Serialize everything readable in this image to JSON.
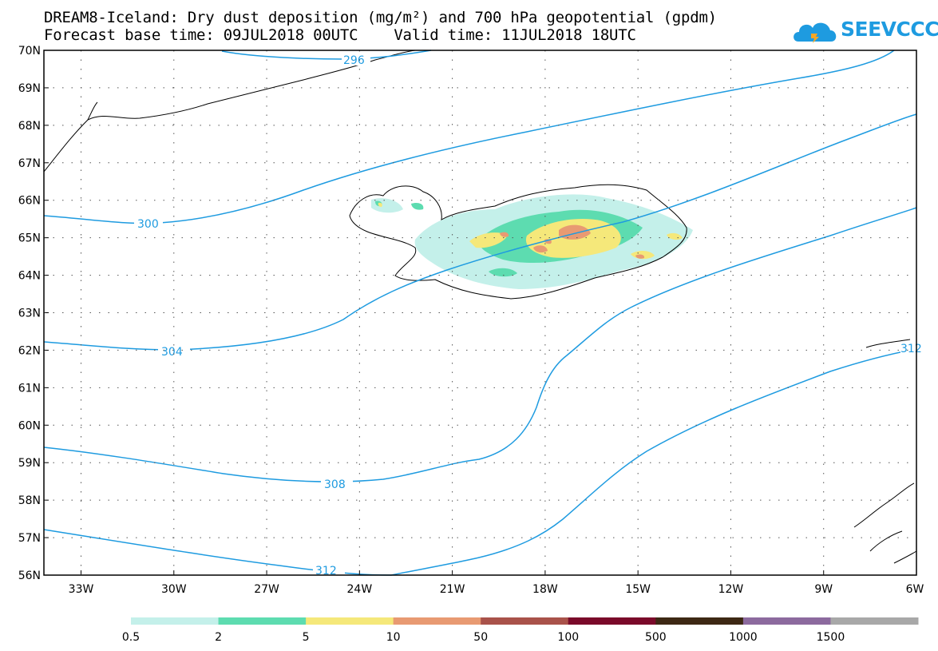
{
  "title": {
    "line1": "DREAM8-Iceland: Dry dust deposition (mg/m²) and 700 hPa geopotential (gpdm)",
    "line2": "Forecast base time: 09JUL2018 00UTC    Valid time: 11JUL2018 18UTC"
  },
  "logo": {
    "text": "SEEVCCC",
    "icon": "cloud-icon",
    "color": "#1e9be0"
  },
  "map": {
    "lat_labels": [
      "70N",
      "69N",
      "68N",
      "67N",
      "66N",
      "65N",
      "64N",
      "63N",
      "62N",
      "61N",
      "60N",
      "59N",
      "58N",
      "57N",
      "56N"
    ],
    "lon_labels": [
      "33W",
      "30W",
      "27W",
      "24W",
      "21W",
      "18W",
      "15W",
      "12W",
      "9W",
      "6W"
    ],
    "contour_labels": [
      "296",
      "300",
      "304",
      "308",
      "312",
      "312"
    ],
    "contour_color": "#1e9be0"
  },
  "colorbar": {
    "labels": [
      "0.5",
      "2",
      "5",
      "10",
      "50",
      "100",
      "500",
      "1000",
      "1500"
    ],
    "colors": [
      "#c4f0ea",
      "#5ddcb0",
      "#f5e87a",
      "#e89a72",
      "#a9524a",
      "#7a0a2a",
      "#3d2814",
      "#8c6a9e",
      "#a8a8a8"
    ]
  }
}
